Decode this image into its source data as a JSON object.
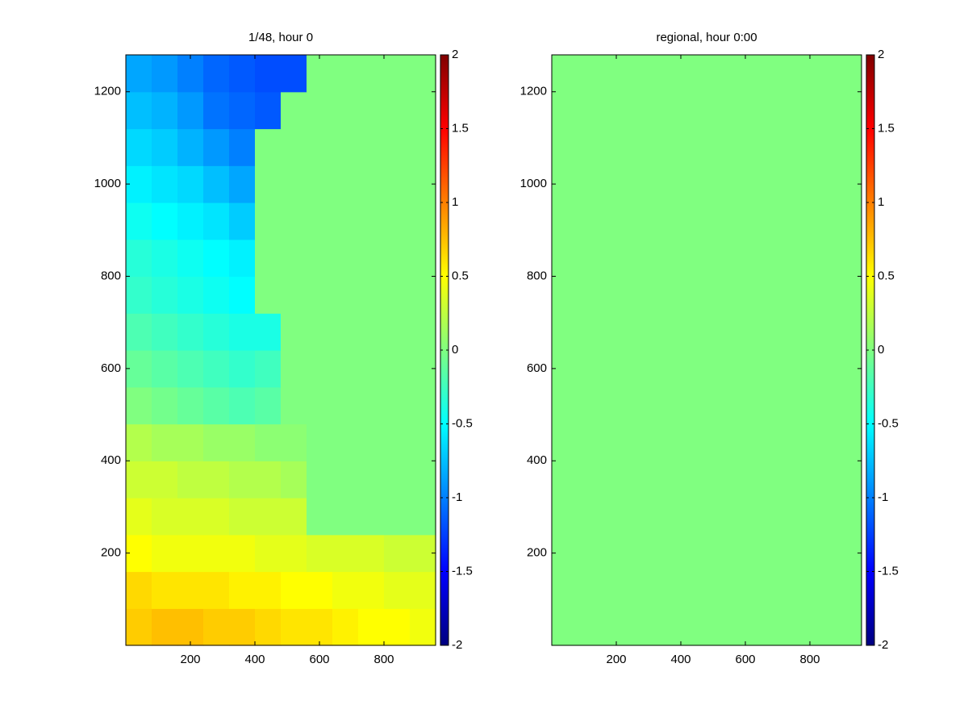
{
  "chart_data": [
    {
      "type": "heatmap",
      "title": "1/48, hour 0",
      "colormap": "jet",
      "xlim": [
        0,
        960
      ],
      "ylim": [
        0,
        1280
      ],
      "xticks": [
        200,
        400,
        600,
        800
      ],
      "yticks": [
        200,
        400,
        600,
        800,
        1000,
        1200
      ],
      "clim": [
        -2,
        2
      ],
      "cticks": [
        -2,
        -1.5,
        -1,
        -0.5,
        0,
        0.5,
        1,
        1.5,
        2
      ],
      "values": [
        [
          0.7,
          0.75,
          0.75,
          0.7,
          0.7,
          0.65,
          0.6,
          0.6,
          0.55,
          0.5,
          0.5,
          0.45
        ],
        [
          0.65,
          0.6,
          0.6,
          0.6,
          0.55,
          0.55,
          0.5,
          0.5,
          0.45,
          0.45,
          0.4,
          0.4
        ],
        [
          0.5,
          0.45,
          0.45,
          0.45,
          0.45,
          0.4,
          0.4,
          0.35,
          0.35,
          0.35,
          0.3,
          0.3
        ],
        [
          0.4,
          0.35,
          0.35,
          0.35,
          0.3,
          0.3,
          0.3,
          0,
          0,
          0,
          0,
          0
        ],
        [
          0.3,
          0.3,
          0.25,
          0.25,
          0.2,
          0.2,
          0.15,
          0,
          0,
          0,
          0,
          0
        ],
        [
          0.2,
          0.15,
          0.15,
          0.1,
          0.1,
          0.05,
          0.05,
          0,
          0,
          0,
          0,
          0
        ],
        [
          0,
          -0.05,
          -0.1,
          -0.15,
          -0.2,
          -0.15,
          0,
          0,
          0,
          0,
          0,
          0
        ],
        [
          -0.1,
          -0.15,
          -0.2,
          -0.25,
          -0.3,
          -0.25,
          0,
          0,
          0,
          0,
          0,
          0
        ],
        [
          -0.2,
          -0.25,
          -0.3,
          -0.35,
          -0.4,
          -0.4,
          0,
          0,
          0,
          0,
          0,
          0
        ],
        [
          -0.3,
          -0.35,
          -0.4,
          -0.45,
          -0.5,
          0,
          0,
          0,
          0,
          0,
          0,
          0
        ],
        [
          -0.35,
          -0.4,
          -0.45,
          -0.5,
          -0.55,
          0,
          0,
          0,
          0,
          0,
          0,
          0
        ],
        [
          -0.45,
          -0.5,
          -0.55,
          -0.6,
          -0.7,
          0,
          0,
          0,
          0,
          0,
          0,
          0
        ],
        [
          -0.55,
          -0.6,
          -0.65,
          -0.75,
          -0.85,
          0,
          0,
          0,
          0,
          0,
          0,
          0
        ],
        [
          -0.65,
          -0.7,
          -0.8,
          -0.9,
          -1.0,
          0,
          0,
          0,
          0,
          0,
          0,
          0
        ],
        [
          -0.75,
          -0.8,
          -0.9,
          -1.05,
          -1.1,
          -1.15,
          0,
          0,
          0,
          0,
          0,
          0
        ],
        [
          -0.85,
          -0.9,
          -1.0,
          -1.1,
          -1.15,
          -1.2,
          -1.2,
          0,
          0,
          0,
          0,
          0
        ]
      ]
    },
    {
      "type": "heatmap",
      "title": "regional, hour 0:00",
      "colormap": "jet",
      "xlim": [
        0,
        960
      ],
      "ylim": [
        0,
        1280
      ],
      "xticks": [
        200,
        400,
        600,
        800
      ],
      "yticks": [
        200,
        400,
        600,
        800,
        1000,
        1200
      ],
      "clim": [
        -2,
        2
      ],
      "cticks": [
        -2,
        -1.5,
        -1,
        -0.5,
        0,
        0.5,
        1,
        1.5,
        2
      ],
      "values": [
        [
          0
        ]
      ]
    }
  ]
}
